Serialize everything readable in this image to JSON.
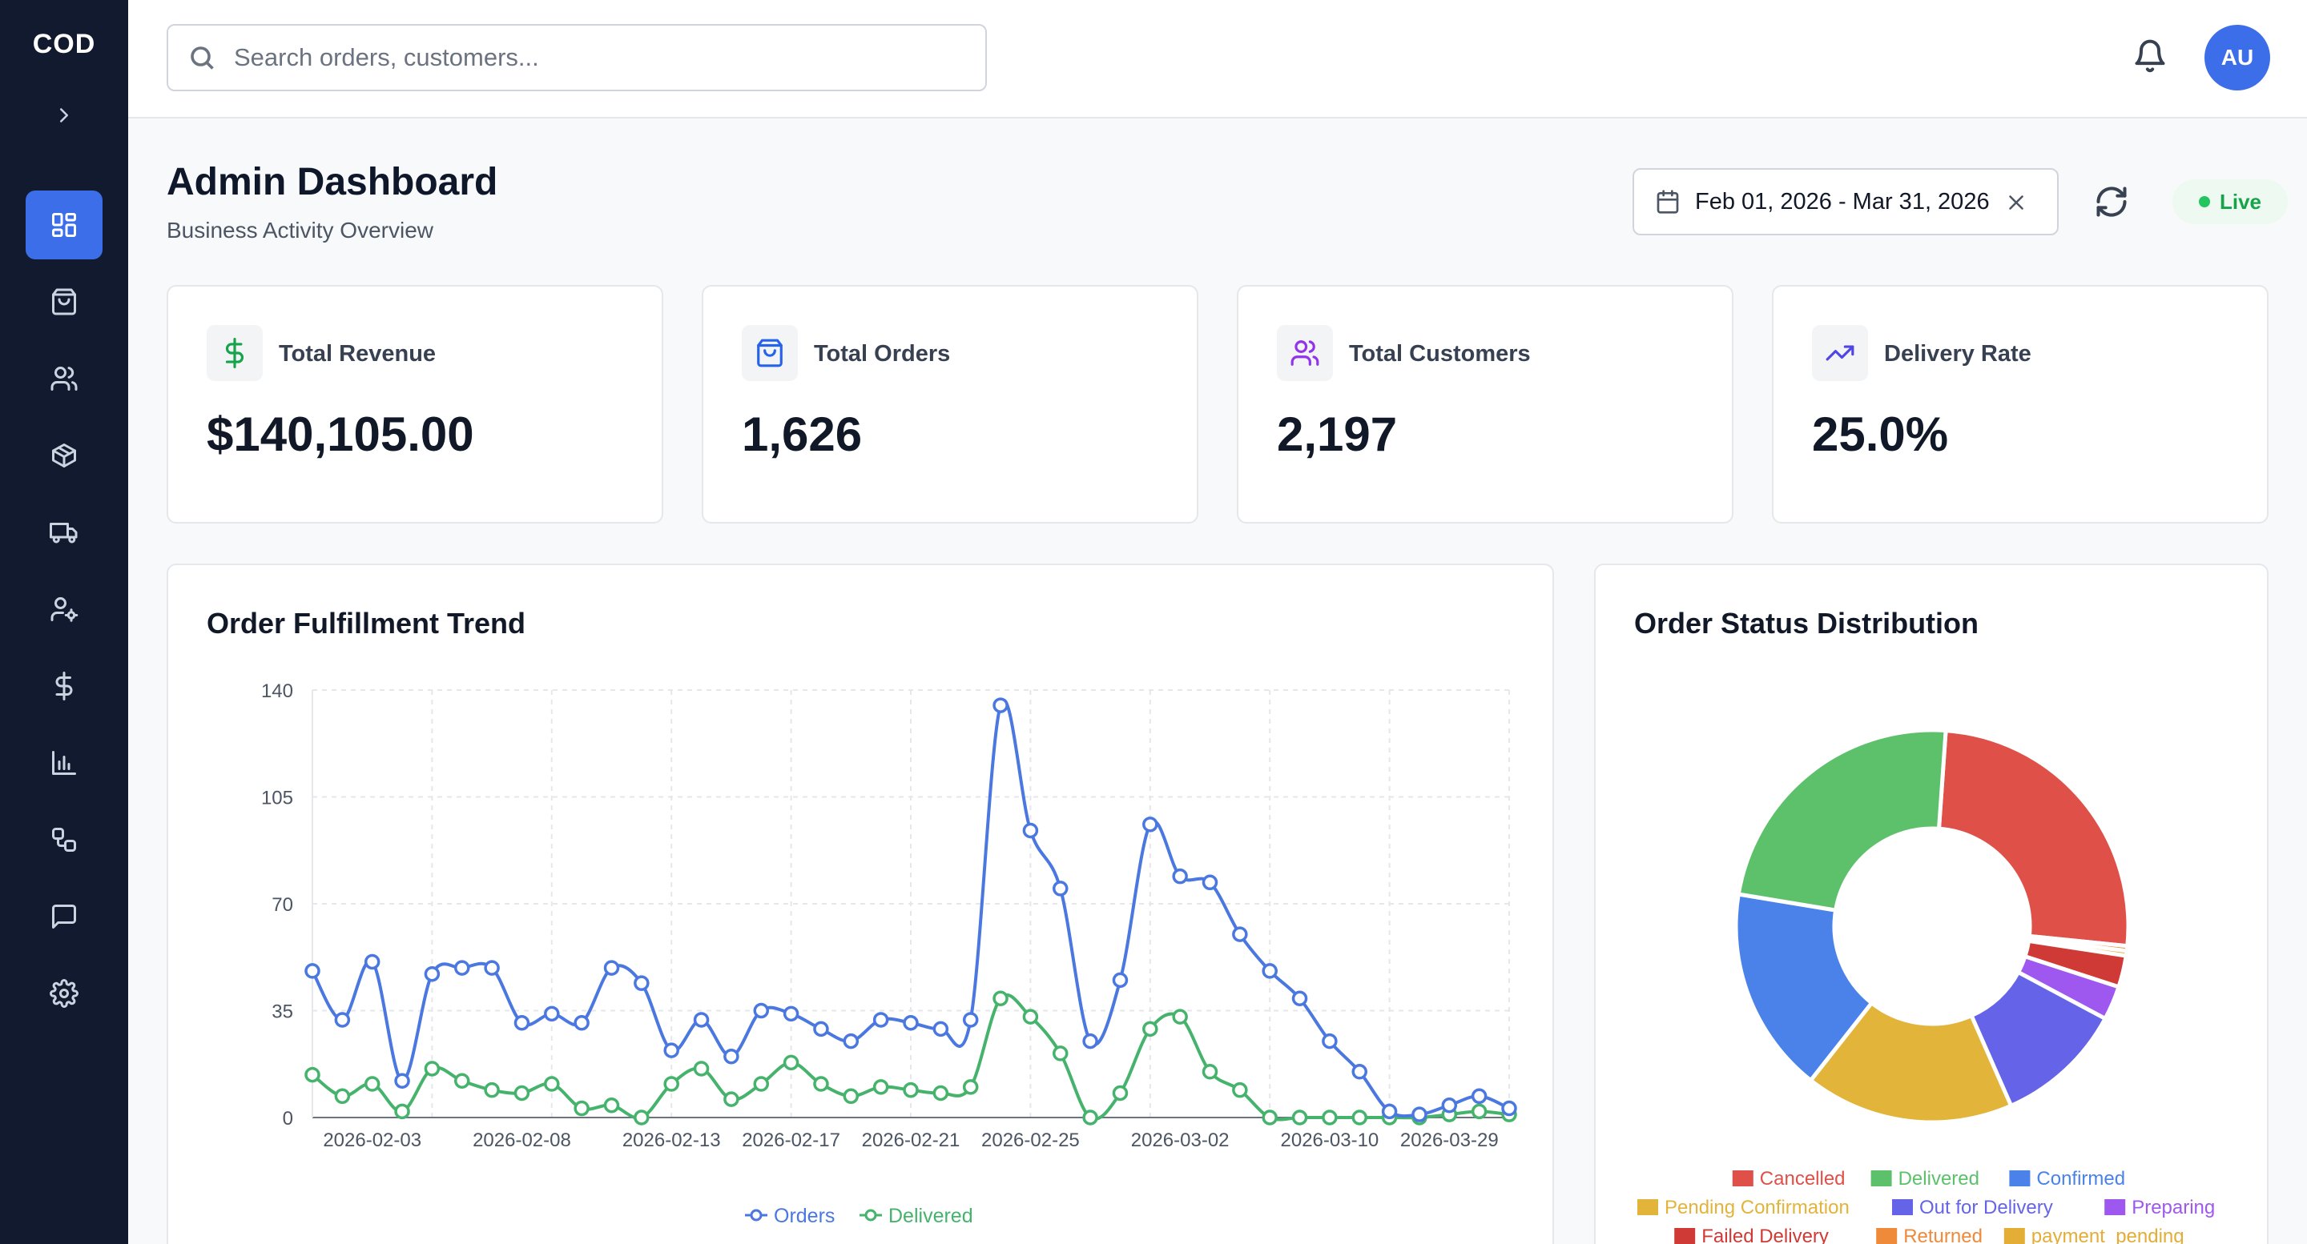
{
  "sidebar": {
    "logo": "COD",
    "items": [
      {
        "name": "dashboard",
        "active": true
      },
      {
        "name": "orders"
      },
      {
        "name": "customers"
      },
      {
        "name": "products"
      },
      {
        "name": "delivery"
      },
      {
        "name": "users"
      },
      {
        "name": "finance"
      },
      {
        "name": "reports"
      },
      {
        "name": "integrations"
      },
      {
        "name": "messages"
      },
      {
        "name": "settings"
      }
    ]
  },
  "topbar": {
    "search_placeholder": "Search orders, customers...",
    "avatar_initials": "AU"
  },
  "header": {
    "title": "Admin Dashboard",
    "subtitle": "Business Activity Overview",
    "date_range": "Feb 01, 2026 - Mar 31, 2026",
    "live_label": "Live"
  },
  "stats": [
    {
      "label": "Total Revenue",
      "value": "$140,105.00",
      "icon": "dollar-icon",
      "color": "#16a34a"
    },
    {
      "label": "Total Orders",
      "value": "1,626",
      "icon": "shopping-bag-icon",
      "color": "#2563eb"
    },
    {
      "label": "Total Customers",
      "value": "2,197",
      "icon": "users-icon",
      "color": "#9333ea"
    },
    {
      "label": "Delivery Rate",
      "value": "25.0%",
      "icon": "trending-up-icon",
      "color": "#4f46e5"
    }
  ],
  "trend": {
    "title": "Order Fulfillment Trend"
  },
  "status": {
    "title": "Order Status Distribution"
  },
  "chart_data": [
    {
      "type": "line",
      "title": "Order Fulfillment Trend",
      "ylim": [
        0,
        140
      ],
      "yticks": [
        0,
        35,
        70,
        105,
        140
      ],
      "xtick_labels": [
        {
          "i": 2,
          "label": "2026-02-03"
        },
        {
          "i": 7,
          "label": "2026-02-08"
        },
        {
          "i": 12,
          "label": "2026-02-13"
        },
        {
          "i": 16,
          "label": "2026-02-17"
        },
        {
          "i": 20,
          "label": "2026-02-21"
        },
        {
          "i": 24,
          "label": "2026-02-25"
        },
        {
          "i": 29,
          "label": "2026-03-02"
        },
        {
          "i": 34,
          "label": "2026-03-10"
        },
        {
          "i": 38,
          "label": "2026-03-29"
        }
      ],
      "grid": true,
      "legend": "bottom",
      "series": [
        {
          "name": "Orders",
          "color": "#4a78e0",
          "values": [
            48,
            32,
            51,
            12,
            47,
            49,
            49,
            31,
            34,
            31,
            49,
            44,
            22,
            32,
            20,
            35,
            34,
            29,
            25,
            32,
            31,
            29,
            32,
            135,
            94,
            75,
            25,
            45,
            96,
            79,
            77,
            60,
            48,
            39,
            25,
            15,
            2,
            1,
            4,
            7,
            3
          ]
        },
        {
          "name": "Delivered",
          "color": "#45b36b",
          "values": [
            14,
            7,
            11,
            2,
            16,
            12,
            9,
            8,
            11,
            3,
            4,
            0,
            11,
            16,
            6,
            11,
            18,
            11,
            7,
            10,
            9,
            8,
            10,
            39,
            33,
            21,
            0,
            8,
            29,
            33,
            15,
            9,
            0,
            0,
            0,
            0,
            0,
            0,
            1,
            2,
            1
          ]
        }
      ]
    },
    {
      "type": "pie",
      "title": "Order Status Distribution",
      "legend": "bottom",
      "series": [
        {
          "name": "Cancelled",
          "value": 25.5,
          "color": "#df5049"
        },
        {
          "name": "Returned",
          "value": 0.4,
          "color": "#ee8a3a"
        },
        {
          "name": "payment_pending",
          "value": 0.4,
          "color": "#e3ad36"
        },
        {
          "name": "Failed Delivery",
          "value": 2.6,
          "color": "#cf3a36"
        },
        {
          "name": "Preparing",
          "value": 2.8,
          "color": "#9e58ef"
        },
        {
          "name": "Out for Delivery",
          "value": 10.6,
          "color": "#6564e8"
        },
        {
          "name": "Pending Confirmation",
          "value": 17.2,
          "color": "#e3b43a"
        },
        {
          "name": "Confirmed",
          "value": 17.0,
          "color": "#4a82ea"
        },
        {
          "name": "Delivered",
          "value": 23.5,
          "color": "#5cc16a"
        }
      ]
    }
  ]
}
